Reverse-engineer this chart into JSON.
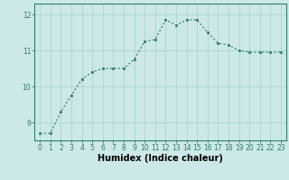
{
  "x": [
    0,
    1,
    2,
    3,
    4,
    5,
    6,
    7,
    8,
    9,
    10,
    11,
    12,
    13,
    14,
    15,
    16,
    17,
    18,
    19,
    20,
    21,
    22,
    23
  ],
  "y": [
    8.7,
    8.7,
    9.3,
    9.75,
    10.2,
    10.4,
    10.5,
    10.5,
    10.5,
    10.75,
    11.25,
    11.3,
    11.85,
    11.7,
    11.85,
    11.85,
    11.5,
    11.2,
    11.15,
    11.0,
    10.95,
    10.95,
    10.95,
    10.95
  ],
  "line_color": "#2e7d6e",
  "marker": "s",
  "marker_size": 1.8,
  "bg_color": "#cce9e7",
  "grid_color": "#aad4d1",
  "xlabel": "Humidex (Indice chaleur)",
  "ylim": [
    8.5,
    12.3
  ],
  "xlim": [
    -0.5,
    23.5
  ],
  "yticks": [
    9,
    10,
    11,
    12
  ],
  "xticks": [
    0,
    1,
    2,
    3,
    4,
    5,
    6,
    7,
    8,
    9,
    10,
    11,
    12,
    13,
    14,
    15,
    16,
    17,
    18,
    19,
    20,
    21,
    22,
    23
  ],
  "tick_fontsize": 5.5,
  "xlabel_fontsize": 7.0
}
